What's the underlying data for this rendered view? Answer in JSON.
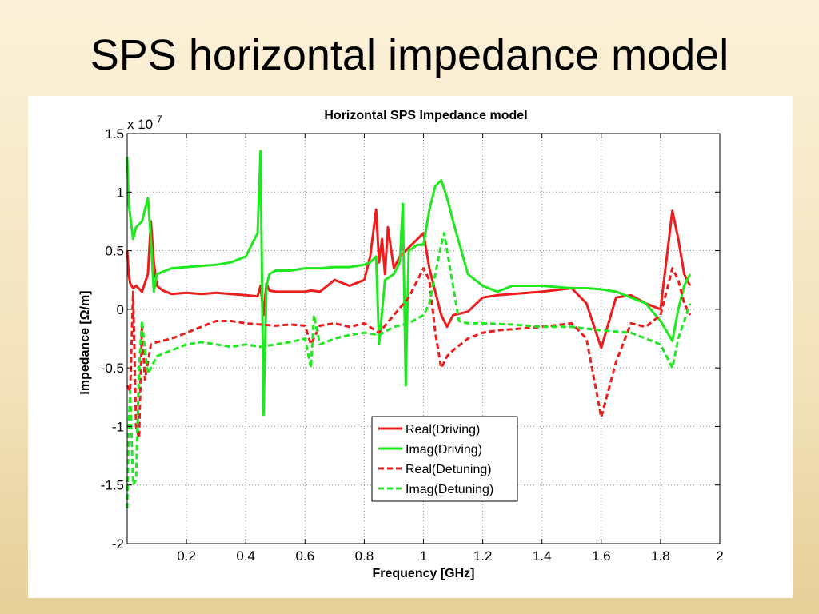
{
  "slide": {
    "title": "SPS horizontal impedance model"
  },
  "chart_data": {
    "type": "line",
    "title": "Horizontal SPS Impedance model",
    "xlabel": "Frequency [GHz]",
    "ylabel": "Impedance [Ω/m]",
    "y_multiplier_base": "x 10",
    "y_multiplier_exp": "7",
    "xlim": [
      0,
      2
    ],
    "ylim": [
      -2,
      1.5
    ],
    "x_ticks": [
      "0.2",
      "0.4",
      "0.6",
      "0.8",
      "1",
      "1.2",
      "1.4",
      "1.6",
      "1.8",
      "2"
    ],
    "y_ticks": [
      "1.5",
      "1",
      "0.5",
      "0",
      "-0.5",
      "-1",
      "-1.5",
      "-2"
    ],
    "grid": true,
    "legend_position": "bottom-center",
    "colors": {
      "red": "#ee1c1c",
      "green": "#1ee81e"
    },
    "series": [
      {
        "name": "Real(Driving)",
        "color": "#ee1c1c",
        "dash": "solid",
        "x": [
          0,
          0.005,
          0.01,
          0.02,
          0.03,
          0.05,
          0.07,
          0.08,
          0.09,
          0.1,
          0.12,
          0.15,
          0.2,
          0.25,
          0.3,
          0.35,
          0.4,
          0.44,
          0.45,
          0.46,
          0.47,
          0.48,
          0.5,
          0.55,
          0.6,
          0.62,
          0.65,
          0.7,
          0.75,
          0.8,
          0.82,
          0.84,
          0.85,
          0.86,
          0.87,
          0.88,
          0.9,
          0.92,
          0.94,
          0.96,
          0.98,
          1.0,
          1.02,
          1.04,
          1.06,
          1.08,
          1.1,
          1.15,
          1.2,
          1.25,
          1.3,
          1.4,
          1.5,
          1.55,
          1.6,
          1.65,
          1.7,
          1.75,
          1.8,
          1.84,
          1.86,
          1.88,
          1.9
        ],
        "values": [
          0.5,
          0.3,
          0.22,
          0.18,
          0.2,
          0.15,
          0.3,
          0.75,
          0.4,
          0.2,
          0.16,
          0.13,
          0.14,
          0.13,
          0.14,
          0.13,
          0.12,
          0.11,
          0.2,
          -0.05,
          0.22,
          0.16,
          0.15,
          0.15,
          0.15,
          0.16,
          0.15,
          0.25,
          0.2,
          0.25,
          0.45,
          0.85,
          0.4,
          0.6,
          0.3,
          0.7,
          0.35,
          0.45,
          0.5,
          0.55,
          0.6,
          0.65,
          0.35,
          0.15,
          -0.05,
          -0.15,
          -0.05,
          -0.02,
          0.1,
          0.12,
          0.13,
          0.15,
          0.18,
          0.05,
          -0.33,
          0.1,
          0.12,
          0.05,
          0.0,
          0.84,
          0.6,
          0.3,
          0.2
        ]
      },
      {
        "name": "Imag(Driving)",
        "color": "#1ee81e",
        "dash": "solid",
        "x": [
          0,
          0.005,
          0.01,
          0.02,
          0.03,
          0.05,
          0.07,
          0.08,
          0.09,
          0.1,
          0.12,
          0.15,
          0.2,
          0.25,
          0.3,
          0.35,
          0.4,
          0.44,
          0.45,
          0.455,
          0.46,
          0.47,
          0.48,
          0.5,
          0.55,
          0.6,
          0.62,
          0.65,
          0.7,
          0.75,
          0.8,
          0.82,
          0.84,
          0.85,
          0.87,
          0.9,
          0.92,
          0.93,
          0.94,
          0.95,
          0.98,
          1.0,
          1.02,
          1.04,
          1.06,
          1.08,
          1.1,
          1.15,
          1.2,
          1.25,
          1.3,
          1.4,
          1.5,
          1.55,
          1.6,
          1.65,
          1.7,
          1.75,
          1.8,
          1.84,
          1.86,
          1.88,
          1.9
        ],
        "values": [
          1.3,
          0.9,
          0.8,
          0.6,
          0.7,
          0.75,
          0.95,
          0.6,
          0.15,
          0.3,
          0.32,
          0.35,
          0.36,
          0.37,
          0.38,
          0.4,
          0.45,
          0.65,
          1.35,
          0.2,
          -0.9,
          0.2,
          0.3,
          0.33,
          0.33,
          0.35,
          0.35,
          0.35,
          0.36,
          0.36,
          0.38,
          0.4,
          0.45,
          -0.3,
          0.25,
          0.3,
          0.4,
          0.9,
          -0.65,
          0.5,
          0.55,
          0.55,
          0.85,
          1.05,
          1.1,
          0.95,
          0.75,
          0.3,
          0.2,
          0.15,
          0.2,
          0.2,
          0.18,
          0.18,
          0.17,
          0.15,
          0.1,
          0.05,
          -0.1,
          -0.27,
          0.0,
          0.2,
          0.3
        ]
      },
      {
        "name": "Real(Detuning)",
        "color": "#ee1c1c",
        "dash": "dashed",
        "x": [
          0,
          0.01,
          0.02,
          0.03,
          0.04,
          0.05,
          0.06,
          0.07,
          0.08,
          0.1,
          0.15,
          0.2,
          0.25,
          0.3,
          0.35,
          0.4,
          0.45,
          0.5,
          0.55,
          0.6,
          0.62,
          0.65,
          0.7,
          0.75,
          0.8,
          0.85,
          0.9,
          0.95,
          1.0,
          1.02,
          1.04,
          1.06,
          1.08,
          1.1,
          1.15,
          1.2,
          1.25,
          1.3,
          1.4,
          1.5,
          1.55,
          1.6,
          1.65,
          1.7,
          1.75,
          1.8,
          1.84,
          1.86,
          1.88,
          1.9
        ],
        "values": [
          -0.65,
          -0.7,
          0.15,
          -1.0,
          -1.1,
          -0.15,
          -0.6,
          -0.45,
          -0.3,
          -0.28,
          -0.25,
          -0.2,
          -0.15,
          -0.1,
          -0.1,
          -0.12,
          -0.13,
          -0.14,
          -0.13,
          -0.14,
          -0.3,
          -0.14,
          -0.12,
          -0.15,
          -0.12,
          -0.2,
          -0.05,
          0.1,
          0.35,
          0.25,
          -0.2,
          -0.5,
          -0.4,
          -0.35,
          -0.25,
          -0.2,
          -0.18,
          -0.17,
          -0.15,
          -0.12,
          -0.25,
          -0.92,
          -0.45,
          -0.12,
          -0.15,
          -0.05,
          0.35,
          0.25,
          0.05,
          -0.05
        ]
      },
      {
        "name": "Imag(Detuning)",
        "color": "#1ee81e",
        "dash": "dashed",
        "x": [
          0,
          0.005,
          0.01,
          0.02,
          0.03,
          0.04,
          0.05,
          0.06,
          0.07,
          0.08,
          0.1,
          0.15,
          0.2,
          0.25,
          0.3,
          0.35,
          0.4,
          0.45,
          0.5,
          0.55,
          0.6,
          0.62,
          0.63,
          0.65,
          0.7,
          0.75,
          0.8,
          0.85,
          0.9,
          0.95,
          1.0,
          1.02,
          1.04,
          1.06,
          1.07,
          1.08,
          1.1,
          1.12,
          1.15,
          1.2,
          1.3,
          1.4,
          1.5,
          1.6,
          1.7,
          1.8,
          1.84,
          1.86,
          1.88,
          1.9
        ],
        "values": [
          -1.7,
          -1.0,
          -0.7,
          -1.5,
          -1.45,
          -0.5,
          -0.1,
          -0.35,
          -0.55,
          -0.5,
          -0.4,
          -0.35,
          -0.3,
          -0.28,
          -0.3,
          -0.32,
          -0.3,
          -0.32,
          -0.3,
          -0.28,
          -0.25,
          -0.5,
          -0.05,
          -0.3,
          -0.25,
          -0.22,
          -0.2,
          -0.22,
          -0.15,
          -0.12,
          -0.05,
          0.05,
          0.3,
          0.55,
          0.65,
          0.5,
          0.2,
          -0.1,
          -0.12,
          -0.12,
          -0.13,
          -0.15,
          -0.15,
          -0.18,
          -0.2,
          -0.3,
          -0.5,
          -0.25,
          -0.1,
          0.05
        ]
      }
    ]
  }
}
